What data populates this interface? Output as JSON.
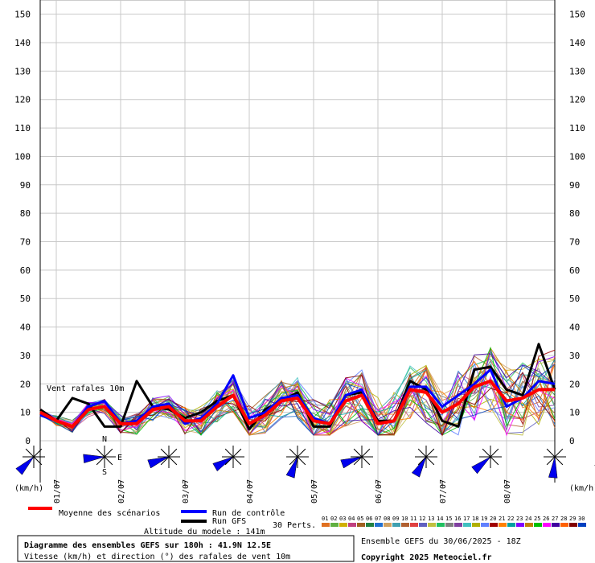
{
  "chart_data": {
    "type": "line",
    "annotation": "Vent rafales 10m",
    "ylim": [
      0,
      155
    ],
    "yticks": [
      0,
      10,
      20,
      30,
      40,
      50,
      60,
      70,
      80,
      90,
      100,
      110,
      120,
      130,
      140,
      150
    ],
    "unit_label": "(km/h)",
    "x_step_hours": 6,
    "day_labels": [
      "01/07",
      "02/07",
      "03/07",
      "04/07",
      "05/07",
      "06/07",
      "07/07",
      "08/07"
    ],
    "series": [
      {
        "name": "Moyenne des scénarios",
        "color": "#ff0000",
        "width": 4,
        "values": [
          10,
          7,
          5,
          11,
          12,
          6,
          6,
          11,
          12,
          7,
          7,
          12,
          16,
          6,
          9,
          14,
          15,
          7,
          6,
          14,
          16,
          6,
          7,
          18,
          17,
          10,
          13,
          19,
          21,
          14,
          15,
          18,
          18
        ]
      },
      {
        "name": "Run de contrôle",
        "color": "#0000ff",
        "width": 3,
        "values": [
          9,
          7,
          5,
          12,
          14,
          6,
          7,
          12,
          13,
          6,
          8,
          13,
          23,
          8,
          10,
          15,
          16,
          8,
          6,
          16,
          18,
          6,
          7,
          19,
          19,
          12,
          16,
          20,
          25,
          12,
          15,
          21,
          20
        ]
      },
      {
        "name": "Run GFS",
        "color": "#000000",
        "width": 3,
        "values": [
          11,
          7,
          15,
          13,
          5,
          5,
          21,
          12,
          11,
          8,
          10,
          14,
          16,
          4,
          11,
          14,
          17,
          5,
          5,
          16,
          17,
          7,
          7,
          21,
          18,
          7,
          5,
          25,
          26,
          18,
          16,
          34,
          18
        ]
      }
    ],
    "members_count": 30,
    "members_label": "30 Perts.",
    "member_ids": [
      "01",
      "02",
      "03",
      "04",
      "05",
      "06",
      "07",
      "08",
      "09",
      "10",
      "11",
      "12",
      "13",
      "14",
      "15",
      "16",
      "17",
      "18",
      "19",
      "20",
      "21",
      "22",
      "23",
      "24",
      "25",
      "26",
      "27",
      "28",
      "29",
      "30"
    ],
    "member_colors": [
      "#e07020",
      "#60b040",
      "#d0b000",
      "#c04080",
      "#a06020",
      "#208040",
      "#2070d0",
      "#d0a060",
      "#40a0b0",
      "#b06030",
      "#e04040",
      "#6060c0",
      "#c0c040",
      "#20c060",
      "#808080",
      "#8040a0",
      "#40c0c0",
      "#b0b000",
      "#6080ff",
      "#a00000",
      "#ff8000",
      "#00a0a0",
      "#8000ff",
      "#c08000",
      "#00c000",
      "#ff00ff",
      "#4000a0",
      "#ff6000",
      "#800000",
      "#0040c0"
    ],
    "wind_directions_deg": [
      225,
      265,
      250,
      240,
      200,
      250,
      210,
      230,
      185,
      235
    ],
    "footer": {
      "title": "Diagramme des ensembles GEFS sur 180h : 41.9N 12.5E",
      "subtitle": "Vitesse (km/h) et direction (°) des rafales de vent 10m",
      "altitude": "Altitude du modele : 141m",
      "run": "Ensemble GEFS du 30/06/2025 - 18Z",
      "copyright": "Copyright 2025 Meteociel.fr"
    },
    "compass": {
      "n": "N",
      "s": "S",
      "e": "E"
    },
    "grid": true
  }
}
